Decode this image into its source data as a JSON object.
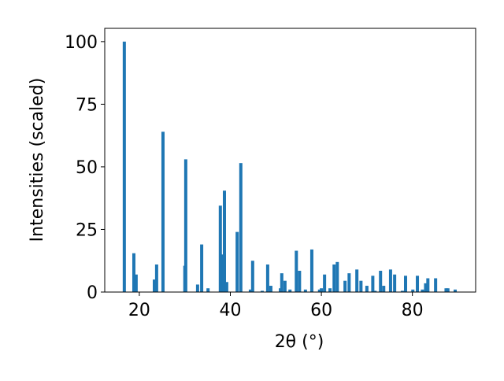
{
  "chart_data": {
    "type": "bar",
    "xlabel": "2θ (°)",
    "ylabel": "Intensities (scaled)",
    "x": [
      16.7,
      18.8,
      19.3,
      23.3,
      23.8,
      25.2,
      30.0,
      30.2,
      32.8,
      33.7,
      35.1,
      37.8,
      38.4,
      38.7,
      39.2,
      41.5,
      42.3,
      44.4,
      44.9,
      47.0,
      48.2,
      48.9,
      51.0,
      51.3,
      52.0,
      53.1,
      54.5,
      55.2,
      56.5,
      57.9,
      59.6,
      60.0,
      60.7,
      61.9,
      62.8,
      63.5,
      65.2,
      66.1,
      67.8,
      68.7,
      70.0,
      71.3,
      71.8,
      73.0,
      73.7,
      75.2,
      76.1,
      77.8,
      78.5,
      80.1,
      81.1,
      82.2,
      82.9,
      83.4,
      85.1,
      87.4,
      87.8,
      89.4
    ],
    "values": [
      100,
      15.5,
      7,
      5,
      11,
      64,
      10.5,
      53,
      3,
      19,
      1.5,
      34.5,
      15,
      40.5,
      4,
      24,
      51.5,
      1,
      12.5,
      0.5,
      11,
      2.5,
      1.5,
      7.5,
      4.5,
      1,
      16.5,
      8.5,
      1,
      17,
      1,
      1.5,
      7,
      1.5,
      11,
      12,
      4.5,
      7.5,
      9,
      4.5,
      2.5,
      6.5,
      0.5,
      8.5,
      2.5,
      9,
      7,
      0.5,
      6.5,
      1,
      6.5,
      1,
      3.5,
      5.5,
      5.5,
      1.5,
      1.5,
      1
    ],
    "color": "#1f77b4",
    "xlim": [
      12.4,
      93.9
    ],
    "ylim": [
      0,
      105.3
    ],
    "xticks": [
      20,
      40,
      60,
      80
    ],
    "yticks": [
      0,
      25,
      50,
      75,
      100
    ]
  }
}
